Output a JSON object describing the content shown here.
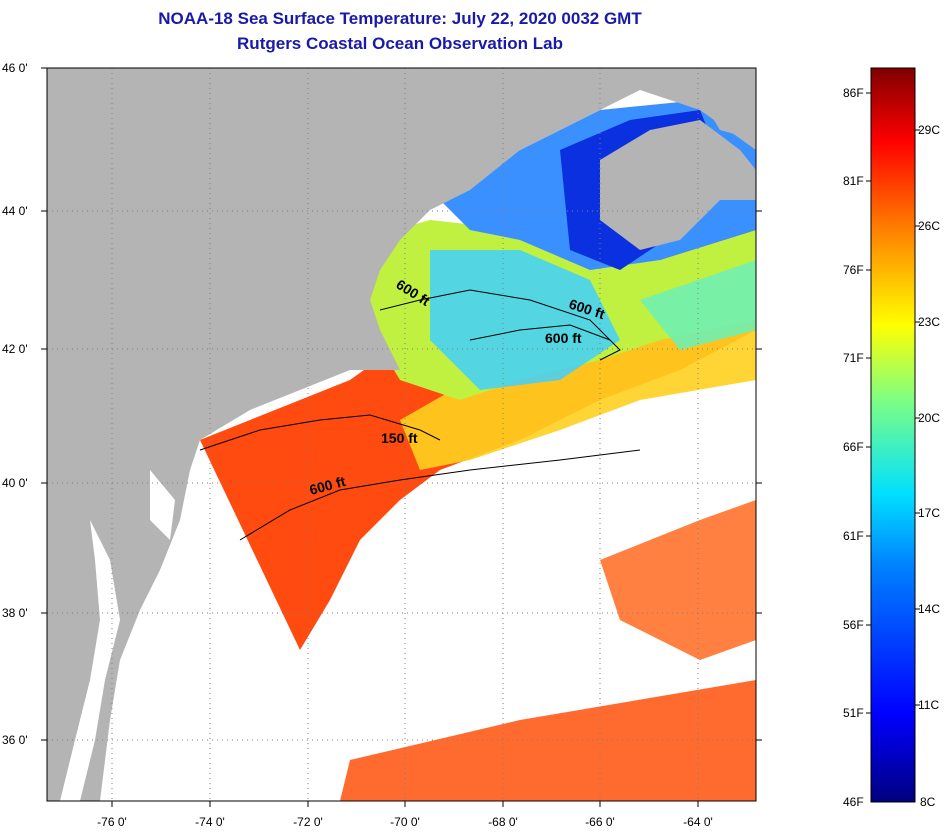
{
  "header": {
    "title": "NOAA-18 Sea Surface Temperature:  July 22, 2020 0032 GMT",
    "subtitle": "Rutgers Coastal Ocean Observation Lab"
  },
  "map": {
    "lat_labels": [
      "46 0'",
      "44 0'",
      "42 0'",
      "40 0'",
      "38 0'",
      "36 0'"
    ],
    "lon_labels": [
      "-76 0'",
      "-74 0'",
      "-72 0'",
      "-70 0'",
      "-68 0'",
      "-66 0'",
      "-64 0'"
    ],
    "lat_range": [
      35,
      46
    ],
    "lon_range": [
      -77,
      -63
    ],
    "contour_labels": [
      "600 ft",
      "600 ft",
      "600 ft",
      "150 ft",
      "600 ft"
    ],
    "colors": {
      "land": "#b4b4b4",
      "no_data": "#ffffff",
      "grid": "#7f7f7f"
    }
  },
  "colorbar": {
    "fahrenheit": [
      "86F",
      "81F",
      "76F",
      "71F",
      "66F",
      "61F",
      "56F",
      "51F",
      "46F"
    ],
    "celsius": [
      "29C",
      "26C",
      "23C",
      "20C",
      "17C",
      "14C",
      "11C",
      "8C"
    ],
    "range_c": [
      8,
      30
    ]
  }
}
